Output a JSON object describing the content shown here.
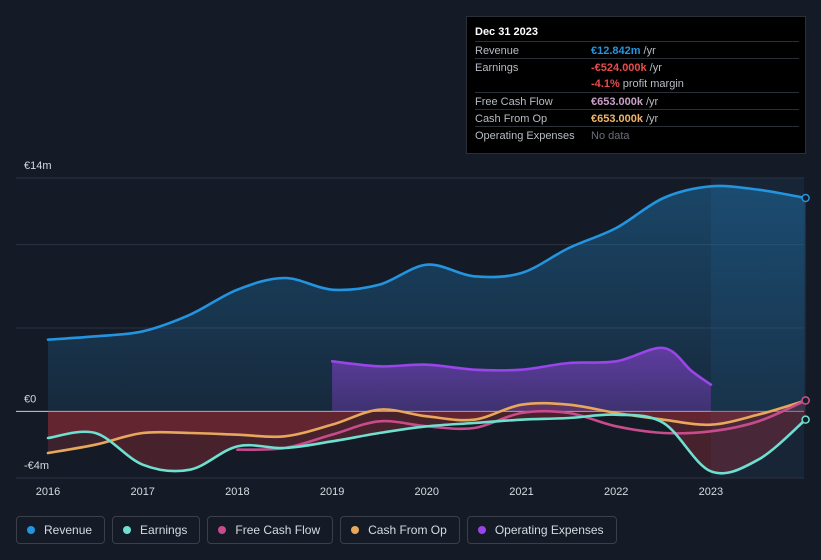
{
  "tooltip": {
    "date": "Dec 31 2023",
    "rows": [
      {
        "label": "Revenue",
        "value": "€12.842m",
        "unit": "/yr",
        "color": "#2394df"
      },
      {
        "label": "Earnings",
        "value": "-€524.000k",
        "unit": "/yr",
        "color": "#e64c4c"
      },
      {
        "label": "Free Cash Flow",
        "value": "€653.000k",
        "unit": "/yr",
        "color": "#c8a0c8"
      },
      {
        "label": "Cash From Op",
        "value": "€653.000k",
        "unit": "/yr",
        "color": "#f0b56a"
      },
      {
        "label": "Operating Expenses",
        "value": "No data",
        "unit": "",
        "color": "#6a707a"
      }
    ],
    "margin": {
      "value": "-4.1%",
      "text": "profit margin",
      "color": "#e64c4c"
    }
  },
  "legend": [
    {
      "label": "Revenue",
      "color": "#2394df"
    },
    {
      "label": "Earnings",
      "color": "#6ee0cf"
    },
    {
      "label": "Free Cash Flow",
      "color": "#c84b8c"
    },
    {
      "label": "Cash From Op",
      "color": "#e8a85c"
    },
    {
      "label": "Operating Expenses",
      "color": "#9945e8"
    }
  ],
  "chart_data": {
    "type": "area",
    "title": "",
    "xlabel": "",
    "ylabel": "",
    "ylim": [
      -4,
      14
    ],
    "y_tick_labels": [
      "€14m",
      "€0",
      "-€4m"
    ],
    "x_ticks": [
      2016,
      2017,
      2018,
      2019,
      2020,
      2021,
      2022,
      2023
    ],
    "x_tick_labels": [
      "2016",
      "2017",
      "2018",
      "2019",
      "2020",
      "2021",
      "2022",
      "2023"
    ],
    "forecast_start": 2023.0,
    "series": [
      {
        "name": "Revenue",
        "color": "#2394df",
        "x": [
          2016,
          2016.5,
          2017,
          2017.5,
          2018,
          2018.5,
          2019,
          2019.5,
          2020,
          2020.5,
          2021,
          2021.5,
          2022,
          2022.5,
          2023,
          2023.5,
          2024
        ],
        "values": [
          4.3,
          4.5,
          4.8,
          5.8,
          7.3,
          8.0,
          7.3,
          7.6,
          8.8,
          8.1,
          8.3,
          9.8,
          11.0,
          12.8,
          13.5,
          13.3,
          12.8
        ]
      },
      {
        "name": "Earnings",
        "color": "#6ee0cf",
        "x": [
          2016,
          2016.5,
          2017,
          2017.5,
          2018,
          2018.5,
          2019,
          2019.5,
          2020,
          2020.5,
          2021,
          2021.5,
          2022,
          2022.5,
          2023,
          2023.5,
          2024
        ],
        "values": [
          -1.6,
          -1.3,
          -3.2,
          -3.5,
          -2.1,
          -2.2,
          -1.8,
          -1.3,
          -0.9,
          -0.7,
          -0.5,
          -0.4,
          -0.2,
          -0.7,
          -3.6,
          -2.9,
          -0.5
        ]
      },
      {
        "name": "Free Cash Flow",
        "color": "#c84b8c",
        "x": [
          2018,
          2018.5,
          2019,
          2019.5,
          2020,
          2020.5,
          2021,
          2021.5,
          2022,
          2022.5,
          2023,
          2023.5,
          2024
        ],
        "values": [
          -2.3,
          -2.2,
          -1.4,
          -0.6,
          -0.9,
          -1.0,
          -0.1,
          -0.1,
          -0.9,
          -1.3,
          -1.2,
          -0.6,
          0.65
        ]
      },
      {
        "name": "Cash From Op",
        "color": "#e8a85c",
        "x": [
          2016,
          2016.5,
          2017,
          2017.5,
          2018,
          2018.5,
          2019,
          2019.5,
          2020,
          2020.5,
          2021,
          2021.5,
          2022,
          2022.5,
          2023,
          2023.5,
          2024
        ],
        "values": [
          -2.5,
          -2.0,
          -1.3,
          -1.3,
          -1.4,
          -1.5,
          -0.8,
          0.1,
          -0.3,
          -0.5,
          0.4,
          0.4,
          -0.1,
          -0.5,
          -0.8,
          -0.2,
          0.65
        ]
      },
      {
        "name": "Operating Expenses",
        "color": "#9945e8",
        "x": [
          2019,
          2019.5,
          2020,
          2020.5,
          2021,
          2021.5,
          2022,
          2022.5,
          2022.8,
          2023
        ],
        "values": [
          3.0,
          2.7,
          2.8,
          2.5,
          2.5,
          2.9,
          3.0,
          3.8,
          2.4,
          1.6
        ]
      }
    ]
  }
}
